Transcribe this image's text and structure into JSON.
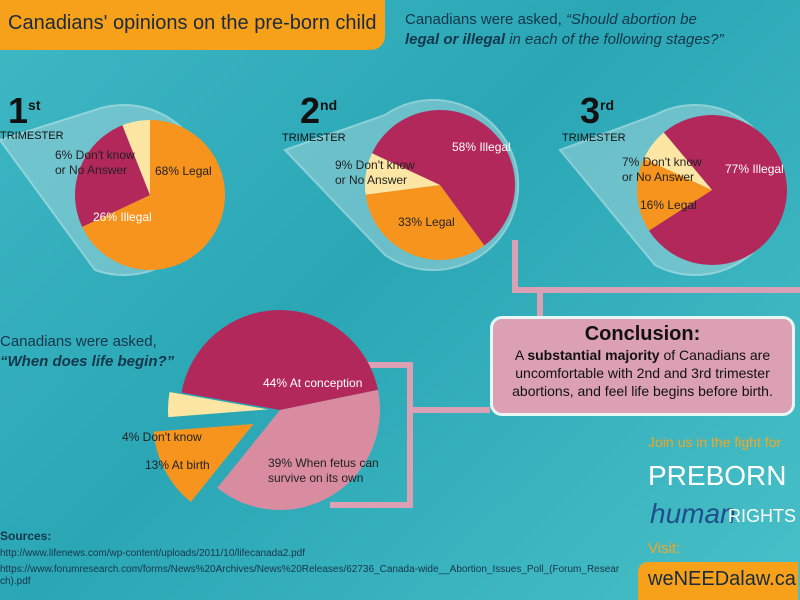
{
  "title": "Canadians' opinions on the pre-born child",
  "question1": {
    "prefix": "Canadians were asked, ",
    "q_a": "“Should abortion be",
    "q_b": "legal or illegal",
    "q_c": " in each of the following stages?”"
  },
  "question2": {
    "line1": "Canadians were asked,",
    "line2": "“When does life begin?”"
  },
  "trimester_word": "TRIMESTER",
  "colors": {
    "legal": "#f7941d",
    "illegal": "#b3285a",
    "dontknow": "#fde6a3",
    "fetus": "#d98ba0",
    "background": "#34b0bd"
  },
  "chart_data": [
    {
      "type": "pie",
      "title": "1st Trimester",
      "number": "1",
      "suffix": "st",
      "slices": [
        {
          "label": "68% Legal",
          "value": 68,
          "color": "#f7941d"
        },
        {
          "label": "26% Illegal",
          "value": 26,
          "color": "#b3285a"
        },
        {
          "label": "6% Don't know or No Answer",
          "value": 6,
          "color": "#fde6a3"
        }
      ]
    },
    {
      "type": "pie",
      "title": "2nd Trimester",
      "number": "2",
      "suffix": "nd",
      "slices": [
        {
          "label": "58% Illegal",
          "value": 58,
          "color": "#b3285a"
        },
        {
          "label": "33% Legal",
          "value": 33,
          "color": "#f7941d"
        },
        {
          "label": "9% Don't know or No Answer",
          "value": 9,
          "color": "#fde6a3"
        }
      ]
    },
    {
      "type": "pie",
      "title": "3rd Trimester",
      "number": "3",
      "suffix": "rd",
      "slices": [
        {
          "label": "77% Illegal",
          "value": 77,
          "color": "#b3285a"
        },
        {
          "label": "16% Legal",
          "value": 16,
          "color": "#f7941d"
        },
        {
          "label": "7% Don't know or No Answer",
          "value": 7,
          "color": "#fde6a3"
        }
      ]
    },
    {
      "type": "pie",
      "title": "When does life begin?",
      "slices": [
        {
          "label": "44% At conception",
          "value": 44,
          "color": "#b3285a"
        },
        {
          "label": "39% When fetus can survive on its own",
          "value": 39,
          "color": "#d98ba0"
        },
        {
          "label": "13% At birth",
          "value": 13,
          "color": "#f7941d"
        },
        {
          "label": "4% Don't know",
          "value": 4,
          "color": "#fde6a3"
        }
      ]
    }
  ],
  "conclusion": {
    "heading": "Conclusion:",
    "a": "A ",
    "bold": "substantial majority",
    "rest": " of Canadians are uncomfortable with 2nd and 3rd trimester abortions, and feel life begins before birth."
  },
  "promo": {
    "join": "Join us in the fight for",
    "preborn": "PREBORN",
    "human": "human",
    "rights": "RIGHTS",
    "visit": "Visit:",
    "url": "weNEEDalaw.ca"
  },
  "sources": {
    "heading": "Sources:",
    "items": [
      "http://www.lifenews.com/wp-content/uploads/2011/10/lifecanada2.pdf",
      "https://www.forumresearch.com/forms/News%20Archives/News%20Releases/62736_Canada-wide__Abortion_Issues_Poll_(Forum_Research).pdf"
    ]
  }
}
